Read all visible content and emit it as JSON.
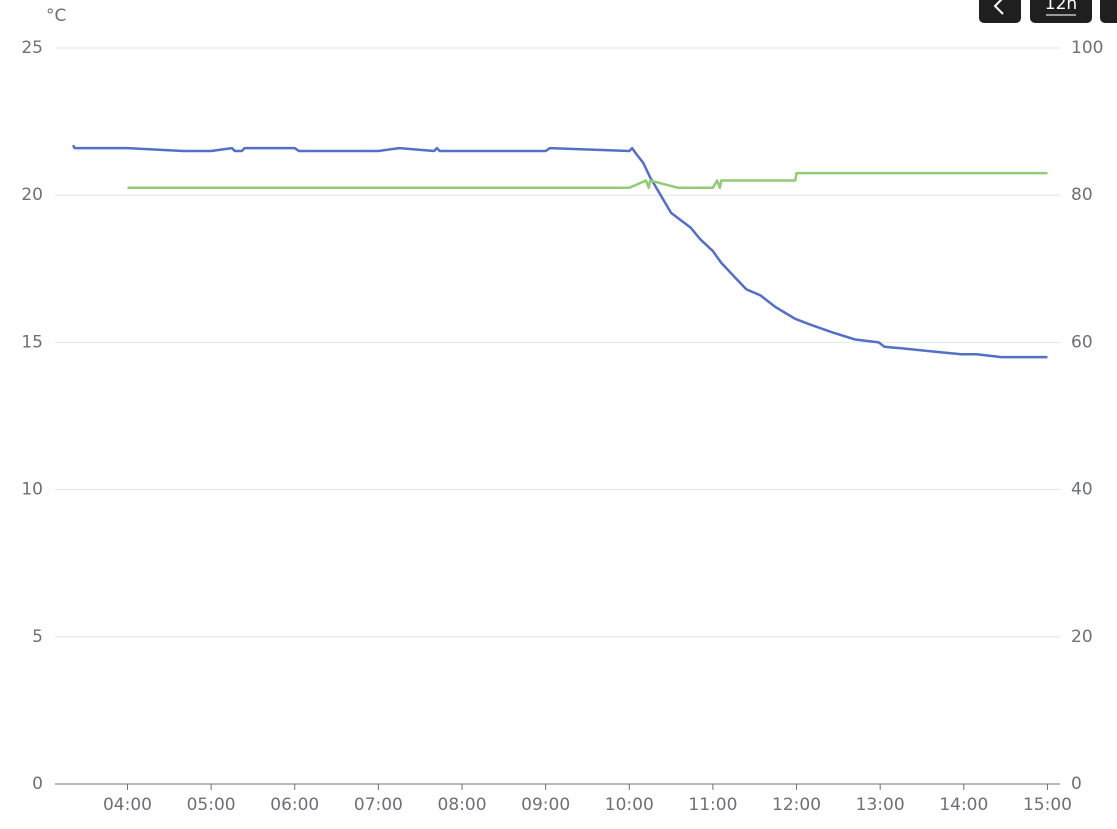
{
  "chart_data": {
    "type": "line",
    "y_unit": "°C",
    "controls": {
      "range": "12h"
    },
    "x": [
      "03:21",
      "03:22",
      "04:00",
      "04:40",
      "05:00",
      "05:15",
      "05:17",
      "05:22",
      "05:24",
      "06:00",
      "06:03",
      "07:00",
      "07:15",
      "07:40",
      "07:42",
      "07:44",
      "09:00",
      "09:03",
      "10:00",
      "10:02",
      "10:05",
      "10:10",
      "10:15",
      "10:20",
      "10:30",
      "10:44",
      "10:51",
      "11:00",
      "11:06",
      "11:16",
      "11:24",
      "11:34",
      "11:45",
      "11:52",
      "11:59",
      "12:10",
      "12:25",
      "12:42",
      "12:59",
      "13:03",
      "13:15",
      "13:36",
      "13:58",
      "14:09",
      "14:27",
      "15:00"
    ],
    "series": [
      {
        "color": "#5470c6",
        "values": [
          21.7,
          21.6,
          21.6,
          21.5,
          21.5,
          21.6,
          21.5,
          21.5,
          21.6,
          21.6,
          21.5,
          21.5,
          21.6,
          21.5,
          21.6,
          21.5,
          21.5,
          21.6,
          21.5,
          21.6,
          21.4,
          21.1,
          20.6,
          20.2,
          19.4,
          18.9,
          18.5,
          18.1,
          17.7,
          17.2,
          16.8,
          16.6,
          16.2,
          16.0,
          15.8,
          15.6,
          15.35,
          15.1,
          15.0,
          14.85,
          14.8,
          14.7,
          14.6,
          14.6,
          14.5,
          14.5
        ]
      },
      {
        "color": "#91cc75",
        "axis": "y2",
        "x": [
          "04:00",
          "10:00",
          "10:12",
          "10:14",
          "10:15",
          "10:25",
          "10:35",
          "11:00",
          "11:03",
          "11:05",
          "11:06",
          "11:59",
          "12:00",
          "15:00"
        ],
        "values": [
          81,
          81,
          82,
          81,
          82,
          81.5,
          81,
          81,
          82,
          81,
          82,
          82,
          83,
          83
        ]
      }
    ],
    "xlim": [
      "03:08",
      "15:09"
    ],
    "xticks": [
      "04:00",
      "05:00",
      "06:00",
      "07:00",
      "08:00",
      "09:00",
      "10:00",
      "11:00",
      "12:00",
      "13:00",
      "14:00",
      "15:00"
    ],
    "ylim": [
      0,
      25
    ],
    "yticks": [
      0,
      5,
      10,
      15,
      20,
      25
    ],
    "y2lim": [
      0,
      100
    ],
    "y2ticks": [
      0,
      20,
      40,
      60,
      80,
      100
    ],
    "grid": true
  }
}
